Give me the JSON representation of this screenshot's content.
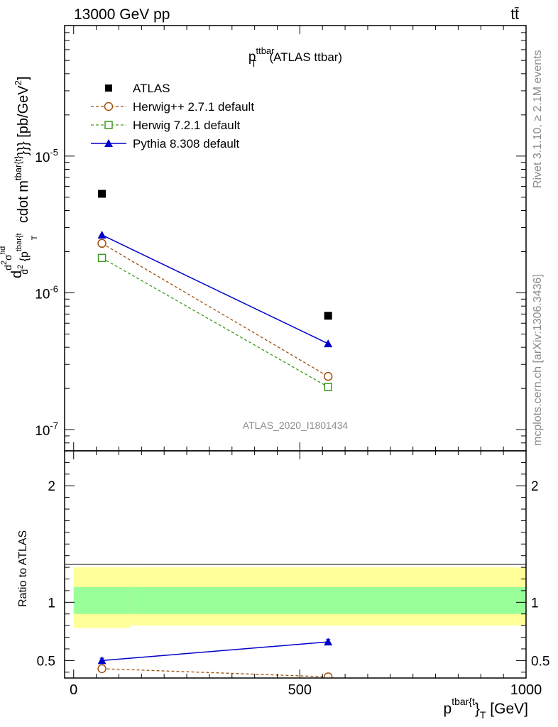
{
  "header": {
    "energy_label": "13000 GeV pp",
    "process_label": "tt̄"
  },
  "side_labels": {
    "rivet": "Rivet 3.1.10, ≥ 2.1M events",
    "mcplots": "mcplots.cern.ch [arXiv:1306.3436]"
  },
  "watermark": "ATLAS_2020_I1801434",
  "colors": {
    "atlas": "#000000",
    "herwig_pp": "#a0520a",
    "herwig7": "#3d9a1e",
    "pythia": "#0000cc",
    "band_outer": "#ffff99",
    "band_inner": "#99ff99"
  },
  "chart_data": [
    {
      "type": "scatter",
      "title": "p_T^{ttbar} (ATLAS ttbar)",
      "xlabel": "p^{tbar{t}}_T [GeV]",
      "ylabel": "d\\frac{d^2σ^{fid}}{d^2 {p^{tbar{t}}}_T} cdot m^{tbar{t}}}} [pb/GeV^2]",
      "xlim": [
        -20,
        1000
      ],
      "ylim": [
        7e-08,
        9e-05
      ],
      "yscale": "log",
      "legend_position": "top-left",
      "x_ticks": [
        "0",
        "500",
        "1000"
      ],
      "y_ticks": [
        "10^-7",
        "10^-6",
        "10^-5"
      ],
      "series": [
        {
          "name": "ATLAS",
          "marker": "square-filled",
          "x": [
            62.5,
            562.5
          ],
          "y": [
            5.3e-06,
            6.8e-07
          ]
        },
        {
          "name": "Herwig++ 2.7.1 default",
          "marker": "circle-open",
          "line": "dashed",
          "x": [
            62.5,
            562.5
          ],
          "y": [
            2.3e-06,
            2.45e-07
          ]
        },
        {
          "name": "Herwig 7.2.1 default",
          "marker": "square-open",
          "line": "dashed",
          "x": [
            62.5,
            562.5
          ],
          "y": [
            1.8e-06,
            2.05e-07
          ]
        },
        {
          "name": "Pythia 8.308 default",
          "marker": "triangle-filled",
          "line": "solid",
          "x": [
            62.5,
            562.5
          ],
          "y": [
            2.65e-06,
            4.25e-07
          ]
        }
      ]
    },
    {
      "type": "line",
      "ylabel": "Ratio to ATLAS",
      "xlim": [
        -20,
        1000
      ],
      "ylim": [
        0.35,
        2.3
      ],
      "y_ticks": [
        "0.5",
        "1",
        "2"
      ],
      "bands": [
        {
          "x": [
            0,
            125
          ],
          "inner": [
            0.9,
            1.13
          ],
          "outer": [
            0.78,
            1.3
          ]
        },
        {
          "x": [
            125,
            1000
          ],
          "inner": [
            0.9,
            1.13
          ],
          "outer": [
            0.8,
            1.3
          ]
        }
      ],
      "series": [
        {
          "name": "Herwig++ 2.7.1 default",
          "x": [
            62.5,
            562.5
          ],
          "y": [
            0.43,
            0.36
          ]
        },
        {
          "name": "Pythia 8.308 default",
          "x": [
            62.5,
            562.5
          ],
          "y": [
            0.5,
            0.66
          ],
          "err": [
            0.02,
            0.02
          ]
        }
      ]
    }
  ]
}
